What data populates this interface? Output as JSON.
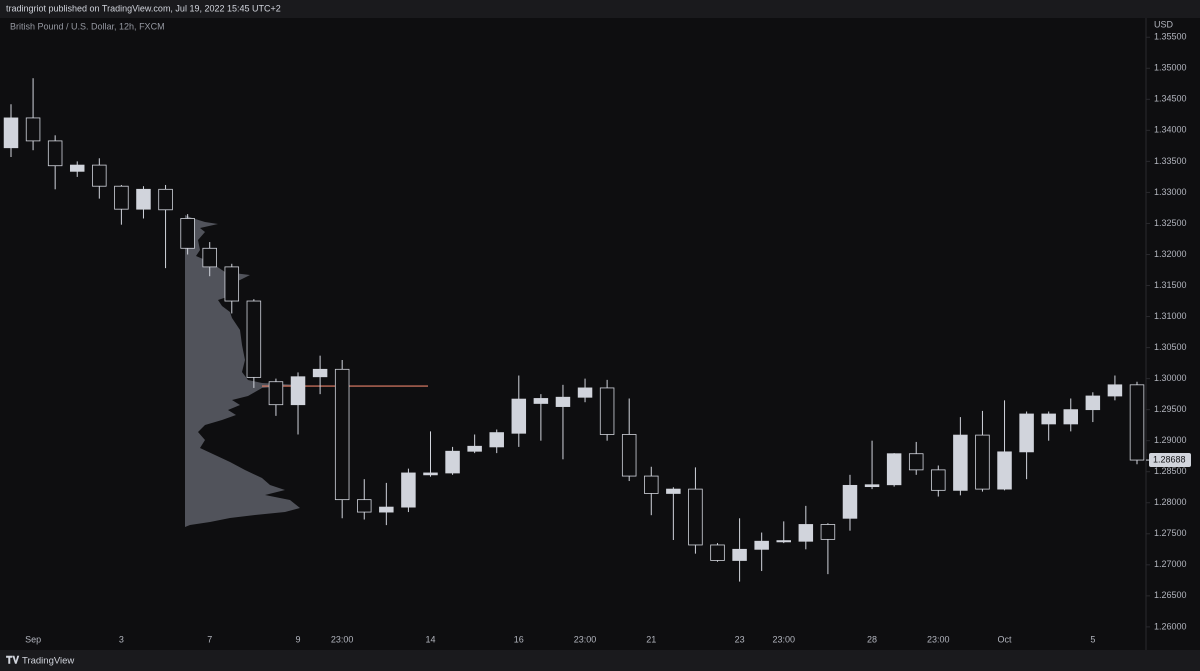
{
  "header": {
    "publisher": "tradingriot published on TradingView.com, Jul 19, 2022 15:45 UTC+2"
  },
  "footer": {
    "brand": "TradingView"
  },
  "chart_data": {
    "type": "candlestick",
    "title": "British Pound / U.S. Dollar, 12h, FXCM",
    "y_axis_label": "USD",
    "up_color": "#d1d4dc",
    "down_color": "#0e0e10",
    "outline_color": "#d1d4dc",
    "poc_color": "#e8826a",
    "grid": false,
    "categories": [
      null,
      "Sep",
      null,
      null,
      null,
      "3",
      null,
      null,
      null,
      "7",
      null,
      null,
      null,
      "9",
      null,
      "23:00",
      null,
      null,
      null,
      "14",
      null,
      null,
      null,
      "16",
      null,
      null,
      "23:00",
      null,
      null,
      "21",
      null,
      null,
      null,
      "23",
      null,
      "23:00",
      null,
      null,
      null,
      "28",
      null,
      null,
      "23:00",
      null,
      null,
      "Oct",
      null,
      null,
      null,
      "5",
      null,
      null
    ],
    "open": [
      1.3372,
      1.342,
      1.3383,
      1.3334,
      1.3344,
      1.331,
      1.3273,
      1.3305,
      1.3258,
      1.321,
      1.318,
      1.3125,
      1.2995,
      1.2958,
      1.3003,
      1.3015,
      1.2805,
      1.2785,
      1.2793,
      1.2845,
      1.2848,
      1.2883,
      1.289,
      1.2912,
      1.296,
      1.2955,
      1.297,
      1.2985,
      1.291,
      1.2843,
      1.2815,
      1.2822,
      1.2732,
      1.2707,
      1.2725,
      1.2737,
      1.2738,
      1.2765,
      1.2775,
      1.2826,
      1.2829,
      1.2879,
      1.2853,
      1.282,
      1.2909,
      1.2822,
      1.2882,
      1.2927,
      1.2927,
      1.295,
      1.2972,
      1.299
    ],
    "high": [
      1.3442,
      1.3484,
      1.3392,
      1.335,
      1.3355,
      1.3312,
      1.331,
      1.3312,
      1.3265,
      1.322,
      1.3185,
      1.3128,
      1.3,
      1.301,
      1.3037,
      1.303,
      1.2838,
      1.2832,
      1.2855,
      1.2915,
      1.289,
      1.291,
      1.2918,
      1.3005,
      1.2975,
      1.299,
      1.3,
      1.2998,
      1.2968,
      1.2858,
      1.2825,
      1.2857,
      1.2735,
      1.2775,
      1.2752,
      1.277,
      1.2795,
      1.2767,
      1.2845,
      1.29,
      1.288,
      1.2898,
      1.286,
      1.2938,
      1.2948,
      1.2965,
      1.2947,
      1.2947,
      1.2968,
      1.2978,
      1.3005,
      1.2995
    ],
    "low": [
      1.3357,
      1.3368,
      1.3305,
      1.3325,
      1.329,
      1.3248,
      1.3258,
      1.3178,
      1.32,
      1.3165,
      1.3105,
      1.2985,
      1.294,
      1.291,
      1.2975,
      1.2775,
      1.2773,
      1.2764,
      1.2785,
      1.2842,
      1.2845,
      1.288,
      1.288,
      1.289,
      1.29,
      1.287,
      1.2962,
      1.29,
      1.2835,
      1.278,
      1.274,
      1.2718,
      1.2705,
      1.2673,
      1.269,
      1.2735,
      1.2725,
      1.2685,
      1.2755,
      1.2822,
      1.2826,
      1.2845,
      1.281,
      1.2812,
      1.2818,
      1.282,
      1.2838,
      1.29,
      1.2915,
      1.293,
      1.2965,
      1.2862
    ],
    "close": [
      1.342,
      1.3383,
      1.3343,
      1.3344,
      1.331,
      1.3273,
      1.3305,
      1.3272,
      1.321,
      1.318,
      1.3125,
      1.3002,
      1.2958,
      1.3003,
      1.3015,
      1.2805,
      1.2785,
      1.2793,
      1.2848,
      1.2848,
      1.2883,
      1.2891,
      1.2913,
      1.2967,
      1.2968,
      1.297,
      1.2985,
      1.291,
      1.2843,
      1.2815,
      1.2822,
      1.2732,
      1.2707,
      1.2725,
      1.2738,
      1.2739,
      1.2765,
      1.2741,
      1.2828,
      1.2829,
      1.2879,
      1.2853,
      1.282,
      1.2909,
      1.2822,
      1.2882,
      1.2943,
      1.2943,
      1.295,
      1.2972,
      1.299,
      1.28688
    ],
    "last_price": 1.28688,
    "poc_price": 1.2988,
    "ylim": [
      1.2595,
      1.3581
    ],
    "yticks": [
      {
        "value": 1.26,
        "label": "1.26000"
      },
      {
        "value": 1.265,
        "label": "1.26500"
      },
      {
        "value": 1.27,
        "label": "1.27000"
      },
      {
        "value": 1.275,
        "label": "1.27500"
      },
      {
        "value": 1.28,
        "label": "1.28000"
      },
      {
        "value": 1.285,
        "label": "1.28500"
      },
      {
        "value": 1.29,
        "label": "1.29000"
      },
      {
        "value": 1.295,
        "label": "1.29500"
      },
      {
        "value": 1.3,
        "label": "1.30000"
      },
      {
        "value": 1.305,
        "label": "1.30500"
      },
      {
        "value": 1.31,
        "label": "1.31000"
      },
      {
        "value": 1.315,
        "label": "1.31500"
      },
      {
        "value": 1.32,
        "label": "1.32000"
      },
      {
        "value": 1.325,
        "label": "1.32500"
      },
      {
        "value": 1.33,
        "label": "1.33000"
      },
      {
        "value": 1.335,
        "label": "1.33500"
      },
      {
        "value": 1.34,
        "label": "1.34000"
      },
      {
        "value": 1.345,
        "label": "1.34500"
      },
      {
        "value": 1.35,
        "label": "1.35000"
      },
      {
        "value": 1.355,
        "label": "1.35500"
      }
    ]
  }
}
